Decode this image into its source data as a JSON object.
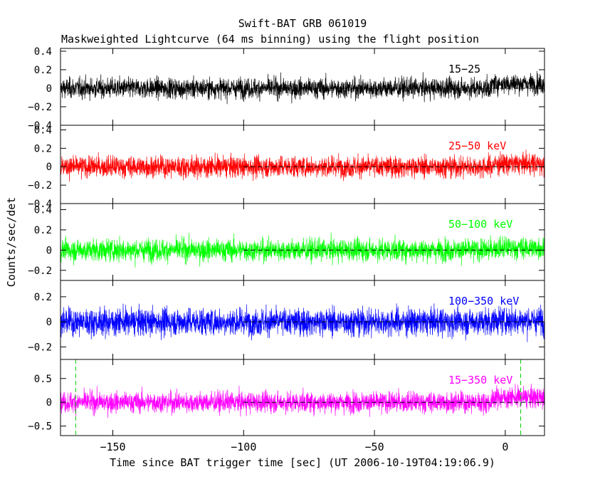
{
  "chart_data": {
    "type": "line",
    "title": "Swift-BAT GRB 061019",
    "subtitle": "Maskweighted Lightcurve (64 ms binning) using the flight position",
    "xlabel": "Time since BAT trigger time [sec] (UT 2006-10-19T04:19:06.9)",
    "ylabel": "Counts/sec/det",
    "xlim": [
      -170,
      15
    ],
    "x_ticks": [
      -150,
      -100,
      -50,
      0
    ],
    "x_tick_labels": [
      "−150",
      "−100",
      "−50",
      "0"
    ],
    "bin_width_sec": 0.064,
    "grid": false,
    "panels": [
      {
        "band": "15-25 keV",
        "label": "15−25",
        "color": "#000000",
        "ylim": [
          -0.4,
          0.43
        ],
        "yticks": [
          -0.4,
          -0.2,
          0,
          0.2,
          0.4
        ],
        "ytick_labels": [
          "−0.4",
          "−0.2",
          "0",
          "0.2",
          "0.4"
        ],
        "mean": 0.0,
        "rms": 0.085,
        "extreme_min": -0.32,
        "extreme_max": 0.38,
        "late_excess": 0.05,
        "zero_dash_from": -100
      },
      {
        "band": "25-50 keV",
        "label": "25−50 keV",
        "color": "#ff0000",
        "ylim": [
          -0.4,
          0.45
        ],
        "yticks": [
          -0.4,
          -0.2,
          0,
          0.2,
          0.4
        ],
        "ytick_labels": [
          "−0.4",
          "−0.2",
          "0",
          "0.2",
          "0.4"
        ],
        "mean": 0.0,
        "rms": 0.09,
        "extreme_min": -0.38,
        "extreme_max": 0.44,
        "late_excess": 0.03,
        "zero_dash_from": -100
      },
      {
        "band": "50-100 keV",
        "label": "50−100 keV",
        "color": "#00ff00",
        "ylim": [
          -0.3,
          0.46
        ],
        "yticks": [
          -0.2,
          0,
          0.2,
          0.4
        ],
        "ytick_labels": [
          "−0.2",
          "0",
          "0.2",
          "0.4"
        ],
        "mean": 0.0,
        "rms": 0.085,
        "extreme_min": -0.28,
        "extreme_max": 0.37,
        "late_excess": 0.02,
        "zero_dash_from": -100
      },
      {
        "band": "100-350 keV",
        "label": "100−350 keV",
        "color": "#0000ff",
        "ylim": [
          -0.3,
          0.33
        ],
        "yticks": [
          -0.2,
          0,
          0.2
        ],
        "ytick_labels": [
          "−0.2",
          "0",
          "0.2"
        ],
        "mean": 0.0,
        "rms": 0.085,
        "extreme_min": -0.28,
        "extreme_max": 0.3,
        "late_excess": 0.01,
        "zero_dash_from": -100
      },
      {
        "band": "15-350 keV",
        "label": "15−350 keV",
        "color": "#ff00ff",
        "ylim": [
          -0.7,
          0.9
        ],
        "yticks": [
          -0.5,
          0,
          0.5
        ],
        "ytick_labels": [
          "−0.5",
          "0",
          "0.5"
        ],
        "mean": 0.0,
        "rms": 0.17,
        "extreme_min": -0.62,
        "extreme_max": 0.8,
        "late_excess": 0.1,
        "zero_dash_from": -100,
        "markers": [
          {
            "x": -164.2,
            "color": "#00cc00"
          },
          {
            "x": 5.9,
            "color": "#00cc00"
          }
        ]
      }
    ]
  }
}
